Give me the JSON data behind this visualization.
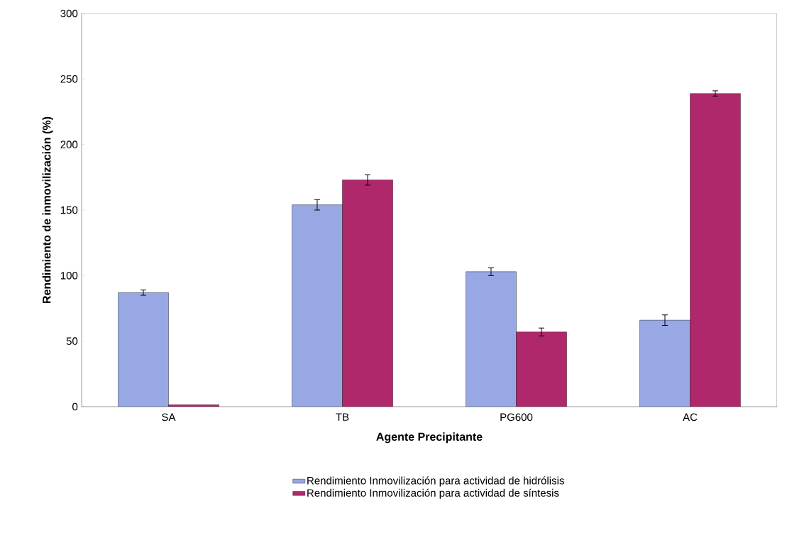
{
  "chart_data": {
    "type": "bar",
    "xlabel": "Agente Precipitante",
    "ylabel": "Rendimiento de inmovilización (%)",
    "categories": [
      "SA",
      "TB",
      "PG600",
      "AC"
    ],
    "series": [
      {
        "name": "Rendimiento Inmovilización para actividad de hidrólisis",
        "color": "#98a8e4",
        "values": [
          87,
          154,
          103,
          66
        ],
        "errors": [
          2,
          4,
          3,
          4
        ]
      },
      {
        "name": "Rendimiento Inmovilización para actividad de síntesis",
        "color": "#b0286c",
        "values": [
          1.5,
          173,
          57,
          239
        ],
        "errors": [
          null,
          4,
          3,
          2
        ]
      }
    ],
    "ylim": [
      0,
      300
    ],
    "yticks": [
      0,
      50,
      100,
      150,
      200,
      250,
      300
    ],
    "legend": "bottom"
  }
}
